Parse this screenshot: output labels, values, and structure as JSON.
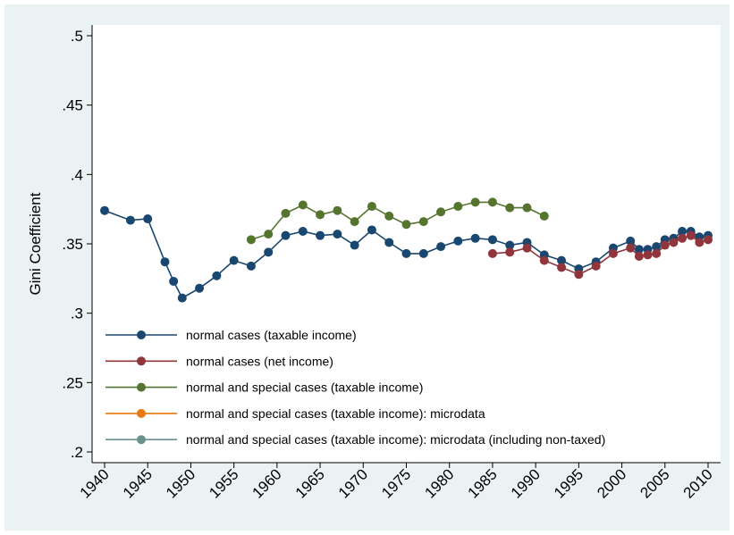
{
  "chart_data": {
    "type": "line",
    "y_label": "Gini Coefficient",
    "xlim": [
      1940,
      2010
    ],
    "xticks": [
      1940,
      1945,
      1950,
      1955,
      1960,
      1965,
      1970,
      1975,
      1980,
      1985,
      1990,
      1995,
      2000,
      2005,
      2010
    ],
    "ylim": [
      0.2,
      0.5
    ],
    "yticks": [
      {
        "value": 0.2,
        "label": ".2"
      },
      {
        "value": 0.25,
        "label": ".25"
      },
      {
        "value": 0.3,
        "label": ".3"
      },
      {
        "value": 0.35,
        "label": ".35"
      },
      {
        "value": 0.4,
        "label": ".4"
      },
      {
        "value": 0.45,
        "label": ".45"
      },
      {
        "value": 0.5,
        "label": ".5"
      }
    ],
    "legend_position": "lower-left",
    "series": [
      {
        "name": "normal cases (taxable income)",
        "color": "#1a476f",
        "x": [
          1940,
          1943,
          1945,
          1947,
          1948,
          1949,
          1951,
          1953,
          1955,
          1957,
          1959,
          1961,
          1963,
          1965,
          1967,
          1969,
          1971,
          1973,
          1975,
          1977,
          1979,
          1981,
          1983,
          1985,
          1987,
          1989,
          1991,
          1993,
          1995,
          1997,
          1999,
          2001,
          2002,
          2003,
          2004,
          2005,
          2006,
          2007,
          2008,
          2009,
          2010
        ],
        "values": [
          0.374,
          0.367,
          0.368,
          0.337,
          0.323,
          0.311,
          0.318,
          0.327,
          0.338,
          0.334,
          0.344,
          0.356,
          0.359,
          0.356,
          0.357,
          0.349,
          0.36,
          0.351,
          0.343,
          0.343,
          0.348,
          0.352,
          0.354,
          0.353,
          0.349,
          0.351,
          0.342,
          0.338,
          0.332,
          0.337,
          0.347,
          0.352,
          0.346,
          0.346,
          0.348,
          0.353,
          0.354,
          0.359,
          0.359,
          0.355,
          0.356
        ]
      },
      {
        "name": "normal cases (net income)",
        "color": "#90353b",
        "x": [
          1985,
          1987,
          1989,
          1991,
          1993,
          1995,
          1997,
          1999,
          2001,
          2002,
          2003,
          2004,
          2005,
          2006,
          2007,
          2008,
          2009,
          2010
        ],
        "values": [
          0.343,
          0.344,
          0.347,
          0.338,
          0.333,
          0.328,
          0.334,
          0.343,
          0.347,
          0.341,
          0.342,
          0.343,
          0.349,
          0.351,
          0.354,
          0.356,
          0.351,
          0.353
        ]
      },
      {
        "name": "normal and special cases (taxable income)",
        "color": "#55752f",
        "x": [
          1957,
          1959,
          1961,
          1963,
          1965,
          1967,
          1969,
          1971,
          1973,
          1975,
          1977,
          1979,
          1981,
          1983,
          1985,
          1987,
          1989,
          1991
        ],
        "values": [
          0.353,
          0.357,
          0.372,
          0.378,
          0.371,
          0.374,
          0.366,
          0.377,
          0.37,
          0.364,
          0.366,
          0.373,
          0.377,
          0.38,
          0.38,
          0.376,
          0.376,
          0.37
        ]
      },
      {
        "name": "normal and special cases (taxable income): microdata",
        "color": "#e8790c",
        "x": [],
        "values": []
      },
      {
        "name": "normal and special cases (taxable income): microdata (including non-taxed)",
        "color": "#67918c",
        "x": [],
        "values": []
      }
    ]
  }
}
